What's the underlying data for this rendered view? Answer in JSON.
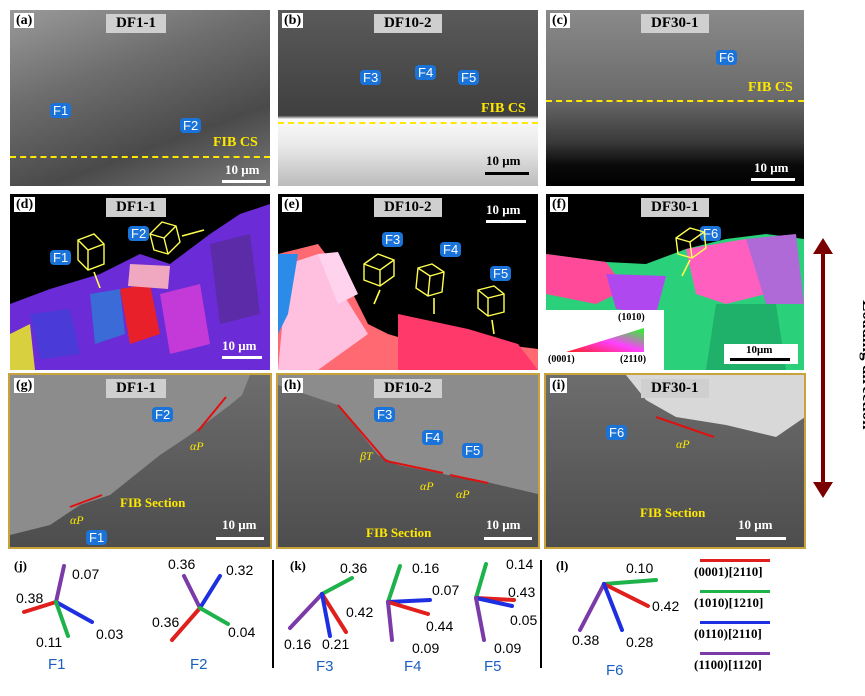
{
  "panels": {
    "a": {
      "label": "(a)",
      "title": "DF1-1",
      "scale": "10 μm",
      "fib": "FIB CS",
      "features": [
        "F1",
        "F2"
      ]
    },
    "b": {
      "label": "(b)",
      "title": "DF10-2",
      "scale": "10 μm",
      "fib": "FIB CS",
      "features": [
        "F3",
        "F4",
        "F5"
      ]
    },
    "c": {
      "label": "(c)",
      "title": "DF30-1",
      "scale": "10 μm",
      "fib": "FIB CS",
      "features": [
        "F6"
      ]
    },
    "d": {
      "label": "(d)",
      "title": "DF1-1",
      "scale": "10 μm",
      "features": [
        "F1",
        "F2"
      ]
    },
    "e": {
      "label": "(e)",
      "title": "DF10-2",
      "scale": "10 μm",
      "features": [
        "F3",
        "F4",
        "F5"
      ]
    },
    "f": {
      "label": "(f)",
      "title": "DF30-1",
      "scale": "10μm",
      "features": [
        "F6"
      ],
      "ipf": {
        "top": "(1010)",
        "left": "(0001)",
        "right": "(2110)"
      }
    },
    "g": {
      "label": "(g)",
      "title": "DF1-1",
      "scale": "10 μm",
      "section": "FIB Section",
      "features": [
        "F2",
        "F1"
      ],
      "greek": [
        "αP",
        "αP"
      ]
    },
    "h": {
      "label": "(h)",
      "title": "DF10-2",
      "scale": "10 μm",
      "section": "FIB Section",
      "features": [
        "F3",
        "F4",
        "F5"
      ],
      "greek": [
        "βT",
        "αP",
        "αP"
      ]
    },
    "i": {
      "label": "(i)",
      "title": "DF30-1",
      "scale": "10 μm",
      "section": "FIB Section",
      "features": [
        "F6"
      ],
      "greek": [
        "αP"
      ]
    }
  },
  "loading_direction": "Loading direction",
  "schmid": {
    "j_label": "(j)",
    "k_label": "(k)",
    "l_label": "(l)",
    "F1": {
      "name": "F1",
      "vals": [
        "0.07",
        "0.38",
        "0.03",
        "0.11"
      ]
    },
    "F2": {
      "name": "F2",
      "vals": [
        "0.36",
        "0.32",
        "0.36",
        "0.04"
      ]
    },
    "F3": {
      "name": "F3",
      "vals": [
        "0.36",
        "0.42",
        "0.16",
        "0.21"
      ]
    },
    "F4": {
      "name": "F4",
      "vals": [
        "0.16",
        "0.07",
        "0.44",
        "0.09"
      ]
    },
    "F5": {
      "name": "F5",
      "vals": [
        "0.14",
        "0.43",
        "0.05",
        "0.09"
      ]
    },
    "F6": {
      "name": "F6",
      "vals": [
        "0.10",
        "0.42",
        "0.38",
        "0.28"
      ]
    }
  },
  "legend": [
    {
      "text": "(0001)[2110]",
      "color": "#e0201c"
    },
    {
      "text": "(1010)[1210]",
      "color": "#1db34a"
    },
    {
      "text": "(0110)[2110]",
      "color": "#1d2fe0"
    },
    {
      "text": "(1100)[1120]",
      "color": "#7a3aa8"
    }
  ]
}
